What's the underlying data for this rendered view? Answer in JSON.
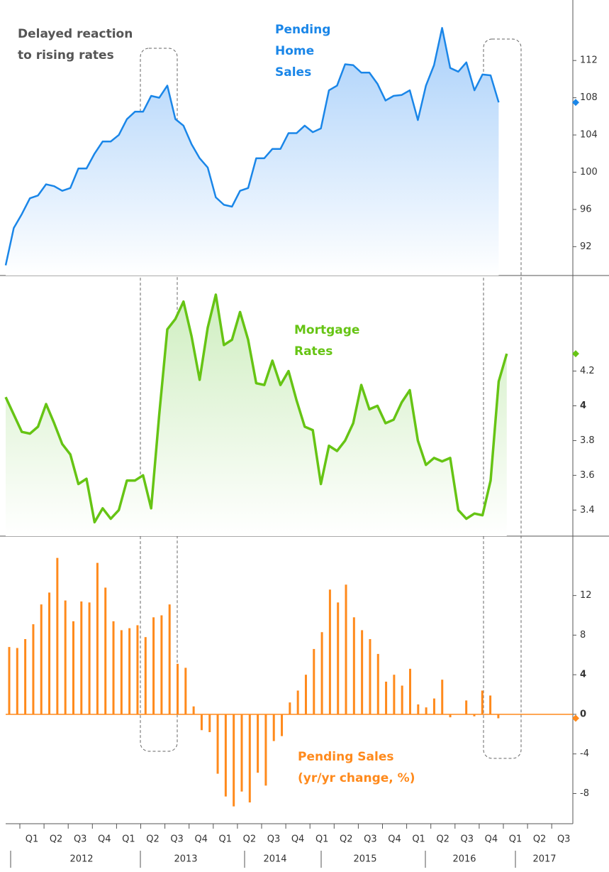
{
  "chart_data": [
    {
      "type": "area",
      "series": [
        {
          "name": "Pending Home Sales",
          "color": "#1a86e8",
          "values": [
            90,
            94,
            95.5,
            97.2,
            97.5,
            98.7,
            98.5,
            98,
            98.3,
            100.4,
            100.4,
            102,
            103.3,
            103.3,
            104,
            105.7,
            106.5,
            106.5,
            108.2,
            108,
            109.3,
            105.7,
            105,
            103,
            101.5,
            100.5,
            97.3,
            96.5,
            96.3,
            98,
            98.3,
            101.5,
            101.5,
            102.5,
            102.5,
            104.2,
            104.2,
            105,
            104.3,
            104.7,
            108.8,
            109.3,
            111.6,
            111.5,
            110.7,
            110.7,
            109.5,
            107.7,
            108.2,
            108.3,
            108.8,
            105.6,
            109.3,
            111.5,
            115.5,
            111.2,
            110.8,
            111.8,
            108.8,
            110.5,
            110.4,
            107.5
          ]
        }
      ],
      "annotation": [
        "Pending",
        "Home",
        "Sales"
      ],
      "callout": [
        "Delayed reaction",
        "to rising rates"
      ],
      "ylim": [
        88.9,
        118.5
      ],
      "yticks": [
        92,
        96,
        100,
        104,
        108,
        112
      ]
    },
    {
      "type": "area",
      "series": [
        {
          "name": "Mortgage Rates",
          "color": "#66c414",
          "values": [
            4.05,
            3.95,
            3.85,
            3.84,
            3.88,
            4.01,
            3.9,
            3.78,
            3.72,
            3.55,
            3.58,
            3.33,
            3.41,
            3.35,
            3.4,
            3.57,
            3.57,
            3.6,
            3.41,
            3.95,
            4.44,
            4.5,
            4.6,
            4.4,
            4.15,
            4.45,
            4.64,
            4.35,
            4.38,
            4.54,
            4.38,
            4.13,
            4.12,
            4.26,
            4.12,
            4.2,
            4.03,
            3.88,
            3.86,
            3.55,
            3.77,
            3.74,
            3.8,
            3.9,
            4.12,
            3.98,
            4.0,
            3.9,
            3.92,
            4.02,
            4.09,
            3.8,
            3.66,
            3.7,
            3.68,
            3.7,
            3.4,
            3.35,
            3.38,
            3.37,
            3.57,
            4.14,
            4.3
          ]
        }
      ],
      "annotation": [
        "Mortgage",
        "Rates"
      ],
      "ylim": [
        3.25,
        4.75
      ],
      "yticks": [
        3.4,
        3.6,
        3.8,
        4,
        4.2
      ]
    },
    {
      "type": "bar",
      "series": [
        {
          "name": "Pending Sales (yr/yr change, %)",
          "color": "#ff8a1c",
          "values": [
            6.8,
            6.7,
            7.6,
            9.1,
            11.1,
            12.3,
            15.8,
            11.5,
            9.4,
            11.4,
            11.3,
            15.3,
            12.8,
            9.4,
            8.5,
            8.7,
            9.0,
            7.8,
            9.8,
            10.0,
            11.1,
            5.1,
            4.7,
            0.8,
            -1.6,
            -1.8,
            -6.0,
            -8.3,
            -9.3,
            -7.8,
            -8.9,
            -5.9,
            -7.2,
            -2.7,
            -2.2,
            1.2,
            2.4,
            4.0,
            6.6,
            8.3,
            12.6,
            11.3,
            13.1,
            9.8,
            8.5,
            7.6,
            6.1,
            3.3,
            4.0,
            2.9,
            4.6,
            1.0,
            0.7,
            1.6,
            3.5,
            -0.3,
            0,
            1.4,
            -0.2,
            2.4,
            1.9,
            -0.4
          ]
        }
      ],
      "annotation": [
        "Pending Sales",
        "(yr/yr change, %)"
      ],
      "ylim": [
        -11.05,
        18
      ],
      "yticks": [
        -8,
        -4,
        0,
        4,
        8,
        12
      ]
    }
  ],
  "x_axis": {
    "quarter_labels": [
      "Q1",
      "Q2",
      "Q3",
      "Q4",
      "Q1",
      "Q2",
      "Q3",
      "Q4",
      "Q1",
      "Q2",
      "Q3",
      "Q4",
      "Q1",
      "Q2",
      "Q3",
      "Q4",
      "Q1",
      "Q2",
      "Q3",
      "Q4",
      "Q1",
      "Q2",
      "Q3"
    ],
    "year_labels": [
      "2012",
      "2013",
      "2014",
      "2015",
      "2016",
      "2017"
    ]
  }
}
